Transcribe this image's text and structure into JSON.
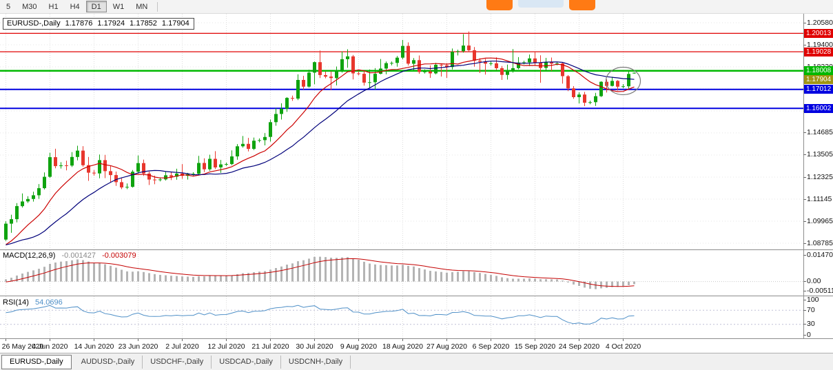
{
  "toolbar": {
    "timeframes": [
      {
        "label": "5",
        "active": false
      },
      {
        "label": "M30",
        "active": false
      },
      {
        "label": "H1",
        "active": false
      },
      {
        "label": "H4",
        "active": false
      },
      {
        "label": "D1",
        "active": true
      },
      {
        "label": "W1",
        "active": false
      },
      {
        "label": "MN",
        "active": false
      }
    ]
  },
  "header": {
    "symbol_period": "EURUSD-,Daily",
    "open": "1.17876",
    "high": "1.17924",
    "low": "1.17852",
    "close": "1.17904"
  },
  "tabs": [
    {
      "label": "EURUSD-,Daily",
      "name": "tab-eurusd-daily",
      "active": true
    },
    {
      "label": "AUDUSD-,Daily",
      "name": "tab-audusd-daily",
      "active": false
    },
    {
      "label": "USDCHF-,Daily",
      "name": "tab-usdchf-daily",
      "active": false
    },
    {
      "label": "USDCAD-,Daily",
      "name": "tab-usdcad-daily",
      "active": false
    },
    {
      "label": "USDCNH-,Daily",
      "name": "tab-usdcnh-daily",
      "active": false
    }
  ],
  "chart_data": {
    "type": "candlestick",
    "symbol": "EURUSD-",
    "period": "Daily",
    "price_axis_labels": [
      "1.20580",
      "1.19400",
      "1.18220",
      "1.17040",
      "1.15860",
      "1.14685",
      "1.13505",
      "1.12325",
      "1.11145",
      "1.09965",
      "1.08785"
    ],
    "date_labels": [
      "26 May 2020",
      "4 Jun 2020",
      "14 Jun 2020",
      "23 Jun 2020",
      "2 Jul 2020",
      "12 Jul 2020",
      "21 Jul 2020",
      "30 Jul 2020",
      "9 Aug 2020",
      "18 Aug 2020",
      "27 Aug 2020",
      "6 Sep 2020",
      "15 Sep 2020",
      "24 Sep 2020",
      "4 Oct 2020"
    ],
    "bars_per_tick": 8,
    "colors": {
      "bull": "#0FA30F",
      "bear": "#E8362D",
      "grid": "#DCDCDC"
    },
    "candles": [
      [
        1.0898,
        1.0996,
        1.0891,
        1.0983
      ],
      [
        1.0983,
        1.1031,
        1.0934,
        1.1007
      ],
      [
        1.1007,
        1.1093,
        1.099,
        1.1077
      ],
      [
        1.1077,
        1.1145,
        1.1069,
        1.1102
      ],
      [
        1.1102,
        1.113,
        1.1094,
        1.1115
      ],
      [
        1.1115,
        1.1154,
        1.1101,
        1.1135
      ],
      [
        1.1135,
        1.1195,
        1.1116,
        1.1173
      ],
      [
        1.1173,
        1.1257,
        1.1166,
        1.1234
      ],
      [
        1.1234,
        1.1362,
        1.1228,
        1.1339
      ],
      [
        1.1339,
        1.1384,
        1.1279,
        1.1291
      ],
      [
        1.1291,
        1.1312,
        1.1278,
        1.1295
      ],
      [
        1.1295,
        1.132,
        1.1268,
        1.1294
      ],
      [
        1.1294,
        1.1366,
        1.1286,
        1.134
      ],
      [
        1.134,
        1.14,
        1.1322,
        1.1374
      ],
      [
        1.1374,
        1.1398,
        1.1288,
        1.1296
      ],
      [
        1.1296,
        1.134,
        1.1212,
        1.1256
      ],
      [
        1.1256,
        1.127,
        1.124,
        1.1252
      ],
      [
        1.1252,
        1.1353,
        1.1226,
        1.1323
      ],
      [
        1.1323,
        1.1351,
        1.1227,
        1.1264
      ],
      [
        1.1264,
        1.1295,
        1.1204,
        1.1243
      ],
      [
        1.1243,
        1.1262,
        1.1185,
        1.1205
      ],
      [
        1.1205,
        1.1226,
        1.1168,
        1.1177
      ],
      [
        1.1177,
        1.1198,
        1.1168,
        1.118
      ],
      [
        1.118,
        1.127,
        1.1176,
        1.1261
      ],
      [
        1.1261,
        1.1348,
        1.1251,
        1.1307
      ],
      [
        1.1307,
        1.1326,
        1.1239,
        1.1251
      ],
      [
        1.1251,
        1.1262,
        1.119,
        1.1219
      ],
      [
        1.1219,
        1.124,
        1.1194,
        1.1218
      ],
      [
        1.1218,
        1.123,
        1.1209,
        1.122
      ],
      [
        1.122,
        1.1261,
        1.1214,
        1.1242
      ],
      [
        1.1242,
        1.1261,
        1.1216,
        1.1234
      ],
      [
        1.1234,
        1.1277,
        1.1218,
        1.1251
      ],
      [
        1.1251,
        1.1302,
        1.1223,
        1.1239
      ],
      [
        1.1239,
        1.1255,
        1.1219,
        1.1248
      ],
      [
        1.1248,
        1.1258,
        1.124,
        1.125
      ],
      [
        1.125,
        1.1346,
        1.1241,
        1.1308
      ],
      [
        1.1308,
        1.1333,
        1.1259,
        1.1274
      ],
      [
        1.1274,
        1.1352,
        1.1266,
        1.133
      ],
      [
        1.133,
        1.1371,
        1.1275,
        1.1284
      ],
      [
        1.1284,
        1.1324,
        1.1255,
        1.13
      ],
      [
        1.13,
        1.131,
        1.1292,
        1.1302
      ],
      [
        1.1302,
        1.1375,
        1.1296,
        1.1343
      ],
      [
        1.1343,
        1.1409,
        1.1325,
        1.1397
      ],
      [
        1.1397,
        1.1452,
        1.139,
        1.141
      ],
      [
        1.141,
        1.1442,
        1.137,
        1.1383
      ],
      [
        1.1383,
        1.1444,
        1.1377,
        1.1427
      ],
      [
        1.1427,
        1.1439,
        1.1418,
        1.143
      ],
      [
        1.143,
        1.1468,
        1.1402,
        1.1447
      ],
      [
        1.1447,
        1.154,
        1.1422,
        1.1526
      ],
      [
        1.1526,
        1.1601,
        1.1507,
        1.157
      ],
      [
        1.157,
        1.1627,
        1.154,
        1.1598
      ],
      [
        1.1598,
        1.166,
        1.1581,
        1.1656
      ],
      [
        1.1656,
        1.1668,
        1.164,
        1.1652
      ],
      [
        1.1652,
        1.1782,
        1.1644,
        1.1752
      ],
      [
        1.1752,
        1.1774,
        1.17,
        1.1716
      ],
      [
        1.1716,
        1.1807,
        1.1711,
        1.1791
      ],
      [
        1.1791,
        1.1851,
        1.1729,
        1.1847
      ],
      [
        1.1847,
        1.1909,
        1.1762,
        1.1778
      ],
      [
        1.1778,
        1.1797,
        1.1761,
        1.177
      ],
      [
        1.177,
        1.1798,
        1.1697,
        1.1762
      ],
      [
        1.1762,
        1.1824,
        1.1723,
        1.1802
      ],
      [
        1.1802,
        1.1905,
        1.1791,
        1.1863
      ],
      [
        1.1863,
        1.1916,
        1.1817,
        1.1878
      ],
      [
        1.1878,
        1.1886,
        1.1755,
        1.1787
      ],
      [
        1.1787,
        1.1799,
        1.1777,
        1.1785
      ],
      [
        1.1785,
        1.1798,
        1.1722,
        1.1738
      ],
      [
        1.1738,
        1.1808,
        1.1711,
        1.174
      ],
      [
        1.174,
        1.1815,
        1.17,
        1.1785
      ],
      [
        1.1785,
        1.1864,
        1.1782,
        1.1813
      ],
      [
        1.1813,
        1.1851,
        1.1782,
        1.1842
      ],
      [
        1.1842,
        1.1851,
        1.183,
        1.1843
      ],
      [
        1.1843,
        1.188,
        1.1823,
        1.1871
      ],
      [
        1.1871,
        1.1966,
        1.1863,
        1.1934
      ],
      [
        1.1934,
        1.1953,
        1.1829,
        1.1839
      ],
      [
        1.1839,
        1.1869,
        1.1802,
        1.1858
      ],
      [
        1.1858,
        1.1883,
        1.1785,
        1.1795
      ],
      [
        1.1795,
        1.1809,
        1.1786,
        1.1797
      ],
      [
        1.1797,
        1.183,
        1.1763,
        1.1787
      ],
      [
        1.1787,
        1.1843,
        1.1782,
        1.1833
      ],
      [
        1.1833,
        1.1838,
        1.177,
        1.183
      ],
      [
        1.183,
        1.1842,
        1.1763,
        1.1821
      ],
      [
        1.1821,
        1.192,
        1.1808,
        1.1903
      ],
      [
        1.1903,
        1.1914,
        1.1883,
        1.1906
      ],
      [
        1.1906,
        1.1997,
        1.1898,
        1.1936
      ],
      [
        1.1936,
        1.2011,
        1.1903,
        1.1911
      ],
      [
        1.1911,
        1.1928,
        1.1823,
        1.1855
      ],
      [
        1.1855,
        1.1868,
        1.1789,
        1.185
      ],
      [
        1.185,
        1.1865,
        1.1781,
        1.1839
      ],
      [
        1.1839,
        1.1852,
        1.1829,
        1.1841
      ],
      [
        1.1841,
        1.1873,
        1.1805,
        1.1815
      ],
      [
        1.1815,
        1.1827,
        1.1752,
        1.1779
      ],
      [
        1.1779,
        1.1834,
        1.1754,
        1.1801
      ],
      [
        1.1801,
        1.1917,
        1.1791,
        1.1815
      ],
      [
        1.1815,
        1.1874,
        1.1809,
        1.1845
      ],
      [
        1.1845,
        1.1855,
        1.1835,
        1.1846
      ],
      [
        1.1846,
        1.1888,
        1.1827,
        1.1867
      ],
      [
        1.1867,
        1.19,
        1.1829,
        1.1845
      ],
      [
        1.1845,
        1.1884,
        1.1737,
        1.1816
      ],
      [
        1.1816,
        1.187,
        1.1797,
        1.1847
      ],
      [
        1.1847,
        1.1872,
        1.18,
        1.1839
      ],
      [
        1.1839,
        1.1848,
        1.183,
        1.184
      ],
      [
        1.184,
        1.1848,
        1.1732,
        1.1772
      ],
      [
        1.1772,
        1.1778,
        1.1692,
        1.1707
      ],
      [
        1.1707,
        1.1719,
        1.1651,
        1.166
      ],
      [
        1.166,
        1.1686,
        1.1626,
        1.1674
      ],
      [
        1.1674,
        1.1688,
        1.1612,
        1.163
      ],
      [
        1.163,
        1.1641,
        1.1622,
        1.1633
      ],
      [
        1.1633,
        1.1683,
        1.1613,
        1.1665
      ],
      [
        1.1665,
        1.1745,
        1.1661,
        1.1742
      ],
      [
        1.1742,
        1.1755,
        1.1685,
        1.172
      ],
      [
        1.172,
        1.1769,
        1.1717,
        1.1747
      ],
      [
        1.1747,
        1.1751,
        1.1695,
        1.1716
      ],
      [
        1.1716,
        1.173,
        1.1708,
        1.1718
      ],
      [
        1.1718,
        1.1798,
        1.1705,
        1.1784
      ],
      [
        1.17876,
        1.17924,
        1.17852,
        1.17904
      ]
    ],
    "seed_closes": [
      1.0889,
      1.0856,
      1.093,
      1.0934,
      1.0915,
      1.0912,
      1.098,
      1.0915,
      1.0873,
      1.0862,
      1.0879,
      1.0858,
      1.082,
      1.0775,
      1.0821,
      1.0823,
      1.0852,
      1.0867,
      1.0913,
      1.0978,
      1.0952,
      1.0898,
      1.0844,
      1.0796,
      1.0791,
      1.0809,
      1.0852,
      1.0806,
      1.0817,
      1.08,
      1.0824,
      1.0885,
      1.0901,
      1.0897,
      1.09,
      1.0898
    ],
    "moving_averages": [
      {
        "type": "sma",
        "period": 10,
        "color": "#CC0000",
        "name": "ma-fast-line"
      },
      {
        "type": "sma",
        "period": 21,
        "color": "#00007A",
        "name": "ma-slow-line"
      }
    ],
    "h_lines": [
      {
        "price": 1.20013,
        "label": "1.20013",
        "color": "#E00000",
        "width": 1.2,
        "name": "resistance-line-1"
      },
      {
        "price": 1.19028,
        "label": "1.19028",
        "color": "#E00000",
        "width": 1.2,
        "name": "resistance-line-2"
      },
      {
        "price": 1.18008,
        "label": "1.18008",
        "color": "#00B800",
        "width": 2.5,
        "name": "pivot-line"
      },
      {
        "price": 1.17012,
        "label": "1.17012",
        "color": "#0000E0",
        "width": 2,
        "name": "support-line-1"
      },
      {
        "price": 1.16002,
        "label": "1.16002",
        "color": "#0000E0",
        "width": 2,
        "name": "support-line-2"
      }
    ],
    "current_price": {
      "label": "1.17904",
      "color": "#A09413"
    },
    "macd": {
      "label": "MACD(12,26,9)",
      "value_main": "-0.001427",
      "value_signal": "-0.003079",
      "fast": 12,
      "slow": 26,
      "signal": 9,
      "range": [
        -0.005113,
        0.014706
      ],
      "axis_labels": [
        "0.014706",
        "0.00",
        "-0.005113"
      ],
      "hist_color": "#B4B4B4",
      "signal_color": "#C40000"
    },
    "rsi": {
      "label": "RSI(14)",
      "value": "54.0696",
      "period": 14,
      "levels": [
        70,
        30
      ],
      "axis_labels": [
        "100",
        "70",
        "30",
        "0"
      ],
      "color": "#4E8FC7"
    },
    "annotation": {
      "type": "ellipse",
      "from_bar": 110,
      "to_bar": 114,
      "color": "#7A7A7A"
    }
  }
}
